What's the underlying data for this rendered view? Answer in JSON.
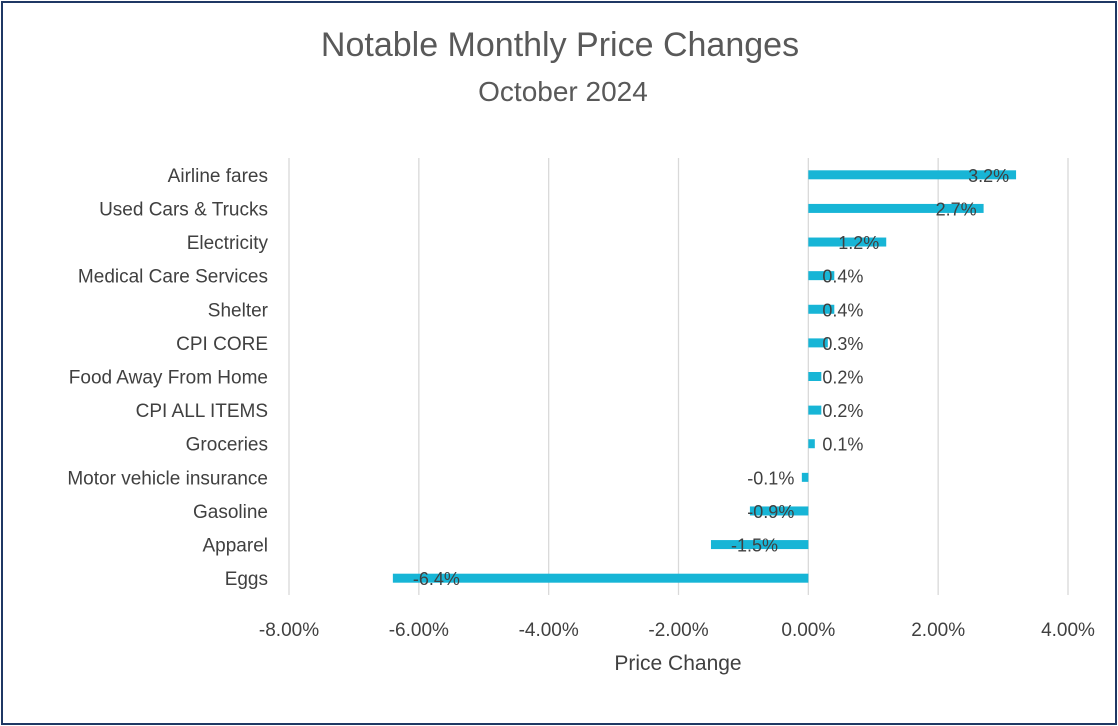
{
  "chart_data": {
    "type": "bar",
    "orientation": "horizontal",
    "title": "Notable Monthly Price Changes",
    "subtitle": "October 2024",
    "xlabel": "Price Change",
    "ylabel": "",
    "xlim": [
      -0.08,
      0.04
    ],
    "xticks": [
      -0.08,
      -0.06,
      -0.04,
      -0.02,
      0,
      0.02,
      0.04
    ],
    "xtick_labels": [
      "-8.00%",
      "-6.00%",
      "-4.00%",
      "-2.00%",
      "0.00%",
      "2.00%",
      "4.00%"
    ],
    "grid": "vertical",
    "legend": "none",
    "bar_color": "#17b5d6",
    "categories": [
      "Airline fares",
      "Used Cars & Trucks",
      "Electricity",
      "Medical Care Services",
      "Shelter",
      "CPI CORE",
      "Food Away From Home",
      "CPI ALL ITEMS",
      "Groceries",
      "Motor vehicle insurance",
      "Gasoline",
      "Apparel",
      "Eggs"
    ],
    "values": [
      0.032,
      0.027,
      0.012,
      0.004,
      0.004,
      0.003,
      0.002,
      0.002,
      0.001,
      -0.001,
      -0.009,
      -0.015,
      -0.064
    ],
    "data_labels": [
      "3.2%",
      "2.7%",
      "1.2%",
      "0.4%",
      "0.4%",
      "0.3%",
      "0.2%",
      "0.2%",
      "0.1%",
      "-0.1%",
      "-0.9%",
      "-1.5%",
      "-6.4%"
    ]
  }
}
